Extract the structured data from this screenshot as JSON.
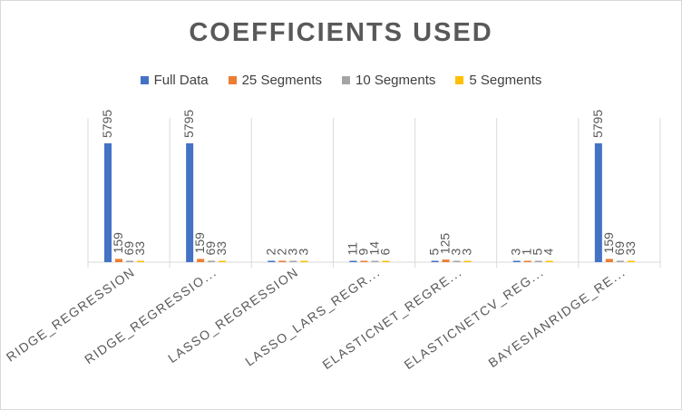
{
  "chart_data": {
    "type": "bar",
    "title": "COEFFICIENTS USED",
    "categories": [
      "RIDGE_REGRESSION",
      "RIDGE_REGRESSIO...",
      "LASSO_REGRESSION",
      "LASSO_LARS_REGR...",
      "ELASTICNET_REGRE...",
      "ELASTICNETCV_REG...",
      "BAYESIANRIDGE_RE..."
    ],
    "series": [
      {
        "name": "Full Data",
        "color": "#4472c4",
        "values": [
          5795,
          5795,
          2,
          11,
          5,
          3,
          5795
        ]
      },
      {
        "name": "25 Segments",
        "color": "#ed7d31",
        "values": [
          159,
          159,
          2,
          9,
          125,
          1,
          159
        ]
      },
      {
        "name": "10 Segments",
        "color": "#a5a5a5",
        "values": [
          69,
          69,
          3,
          14,
          3,
          5,
          69
        ]
      },
      {
        "name": "5 Segments",
        "color": "#ffc000",
        "values": [
          33,
          33,
          3,
          6,
          3,
          4,
          33
        ]
      }
    ],
    "ylim": [
      0,
      6000
    ],
    "legend_position": "top",
    "grid": false,
    "xlabel": "",
    "ylabel": ""
  }
}
